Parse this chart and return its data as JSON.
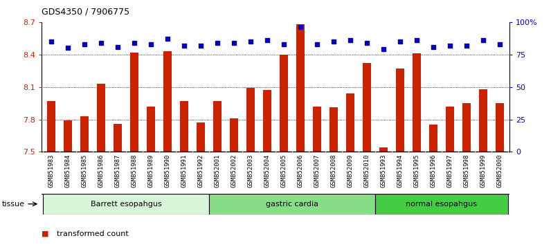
{
  "title": "GDS4350 / 7906775",
  "samples": [
    "GSM851983",
    "GSM851984",
    "GSM851985",
    "GSM851986",
    "GSM851987",
    "GSM851988",
    "GSM851989",
    "GSM851990",
    "GSM851991",
    "GSM851992",
    "GSM852001",
    "GSM852002",
    "GSM852003",
    "GSM852004",
    "GSM852005",
    "GSM852006",
    "GSM852007",
    "GSM852008",
    "GSM852009",
    "GSM852010",
    "GSM851993",
    "GSM851994",
    "GSM851995",
    "GSM851996",
    "GSM851997",
    "GSM851998",
    "GSM851999",
    "GSM852000"
  ],
  "bar_values": [
    7.97,
    7.79,
    7.83,
    8.13,
    7.76,
    8.42,
    7.92,
    8.43,
    7.97,
    7.77,
    7.97,
    7.81,
    8.09,
    8.07,
    8.4,
    8.68,
    7.92,
    7.91,
    8.04,
    8.32,
    7.54,
    8.27,
    8.41,
    7.75,
    7.92,
    7.95,
    8.08,
    7.95
  ],
  "percentile_values": [
    85,
    80,
    83,
    84,
    81,
    84,
    83,
    87,
    82,
    82,
    84,
    84,
    85,
    86,
    83,
    96,
    83,
    85,
    86,
    84,
    79,
    85,
    86,
    81,
    82,
    82,
    86,
    83
  ],
  "groups": [
    {
      "label": "Barrett esopahgus",
      "start": 0,
      "end": 9,
      "color": "#d8f5d8"
    },
    {
      "label": "gastric cardia",
      "start": 10,
      "end": 19,
      "color": "#88dd88"
    },
    {
      "label": "normal esopahgus",
      "start": 20,
      "end": 27,
      "color": "#44cc44"
    }
  ],
  "bar_color": "#cc2200",
  "dot_color": "#0000cc",
  "bar_bottom": 7.5,
  "ylim_left": [
    7.5,
    8.7
  ],
  "ylim_right": [
    0,
    100
  ],
  "yticks_left": [
    7.5,
    7.8,
    8.1,
    8.4,
    8.7
  ],
  "yticks_right": [
    0,
    25,
    50,
    75,
    100
  ],
  "ytick_labels_right": [
    "0",
    "25",
    "50",
    "75",
    "100%"
  ],
  "grid_values": [
    7.8,
    8.1,
    8.4
  ],
  "xtick_bg": "#d8d8d8",
  "plot_bg": "#ffffff"
}
